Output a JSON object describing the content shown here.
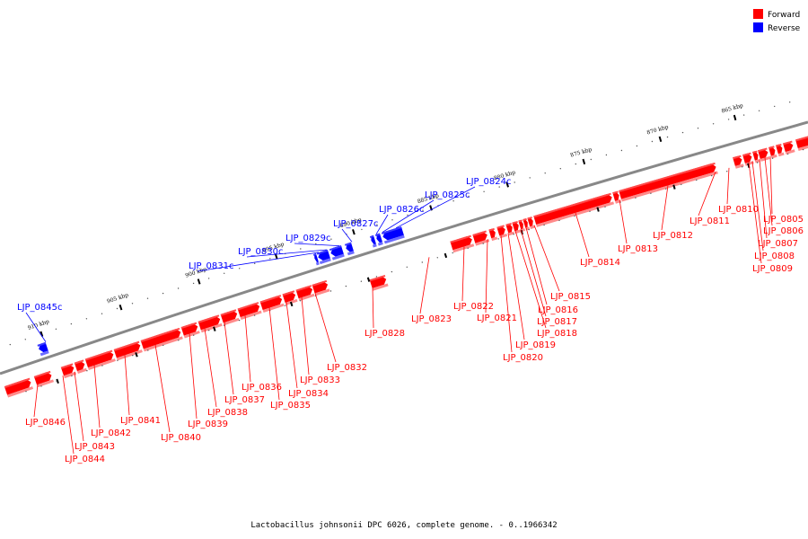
{
  "caption": "Lactobacillus johnsonii DPC 6026, complete genome. - 0..1966342",
  "legend": [
    {
      "label": "Forward",
      "color": "#ff0000"
    },
    {
      "label": "Reverse",
      "color": "#0000ff"
    }
  ],
  "colors": {
    "forward": "#ff0000",
    "reverse": "#0000ff",
    "backbone": "#888888"
  },
  "scale_ticks": [
    "865 kbp",
    "870 kbp",
    "875 kbp",
    "880 kbp",
    "885 kbp",
    "890 kbp",
    "895 kbp",
    "900 kbp",
    "905 kbp",
    "910 kbp"
  ],
  "genes": [
    {
      "name": "LJP_0805",
      "strand": "forward"
    },
    {
      "name": "LJP_0806",
      "strand": "forward"
    },
    {
      "name": "LJP_0807",
      "strand": "forward"
    },
    {
      "name": "LJP_0808",
      "strand": "forward"
    },
    {
      "name": "LJP_0809",
      "strand": "forward"
    },
    {
      "name": "LJP_0810",
      "strand": "forward"
    },
    {
      "name": "LJP_0811",
      "strand": "forward"
    },
    {
      "name": "LJP_0812",
      "strand": "forward"
    },
    {
      "name": "LJP_0813",
      "strand": "forward"
    },
    {
      "name": "LJP_0814",
      "strand": "forward"
    },
    {
      "name": "LJP_0815",
      "strand": "forward"
    },
    {
      "name": "LJP_0816",
      "strand": "forward"
    },
    {
      "name": "LJP_0817",
      "strand": "forward"
    },
    {
      "name": "LJP_0818",
      "strand": "forward"
    },
    {
      "name": "LJP_0819",
      "strand": "forward"
    },
    {
      "name": "LJP_0820",
      "strand": "forward"
    },
    {
      "name": "LJP_0821",
      "strand": "forward"
    },
    {
      "name": "LJP_0822",
      "strand": "forward"
    },
    {
      "name": "LJP_0823",
      "strand": "forward"
    },
    {
      "name": "LJP_0824c",
      "strand": "reverse"
    },
    {
      "name": "LJP_0825c",
      "strand": "reverse"
    },
    {
      "name": "LJP_0826c",
      "strand": "reverse"
    },
    {
      "name": "LJP_0827c",
      "strand": "reverse"
    },
    {
      "name": "LJP_0828",
      "strand": "forward"
    },
    {
      "name": "LJP_0829c",
      "strand": "reverse"
    },
    {
      "name": "LJP_0830c",
      "strand": "reverse"
    },
    {
      "name": "LJP_0831c",
      "strand": "reverse"
    },
    {
      "name": "LJP_0832",
      "strand": "forward"
    },
    {
      "name": "LJP_0833",
      "strand": "forward"
    },
    {
      "name": "LJP_0834",
      "strand": "forward"
    },
    {
      "name": "LJP_0835",
      "strand": "forward"
    },
    {
      "name": "LJP_0836",
      "strand": "forward"
    },
    {
      "name": "LJP_0837",
      "strand": "forward"
    },
    {
      "name": "LJP_0838",
      "strand": "forward"
    },
    {
      "name": "LJP_0839",
      "strand": "forward"
    },
    {
      "name": "LJP_0840",
      "strand": "forward"
    },
    {
      "name": "LJP_0841",
      "strand": "forward"
    },
    {
      "name": "LJP_0842",
      "strand": "forward"
    },
    {
      "name": "LJP_0843",
      "strand": "forward"
    },
    {
      "name": "LJP_0844",
      "strand": "forward"
    },
    {
      "name": "LJP_0845c",
      "strand": "reverse"
    },
    {
      "name": "LJP_0846",
      "strand": "forward"
    }
  ]
}
